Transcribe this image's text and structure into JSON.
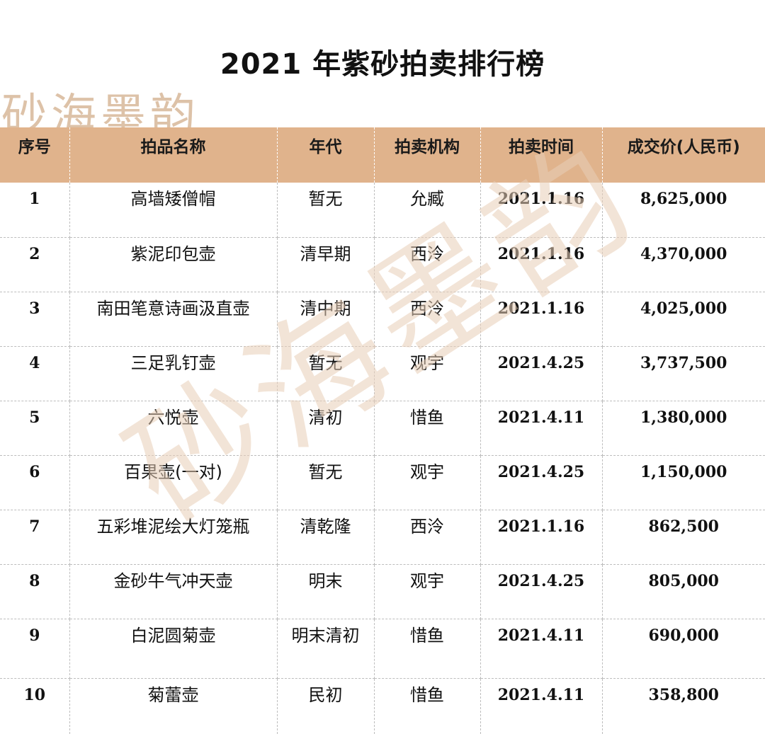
{
  "title": "2021 年紫砂拍卖排行榜",
  "watermark": "砂海墨韵",
  "table": {
    "headers": [
      "序号",
      "拍品名称",
      "年代",
      "拍卖机构",
      "拍卖时间",
      "成交价(人民币)"
    ],
    "rows": [
      {
        "no": "1",
        "name": "高墙矮僧帽",
        "era": "暂无",
        "house": "允臧",
        "date": "2021.1.16",
        "price": "8,625,000"
      },
      {
        "no": "2",
        "name": "紫泥印包壶",
        "era": "清早期",
        "house": "西泠",
        "date": "2021.1.16",
        "price": "4,370,000"
      },
      {
        "no": "3",
        "name": "南田笔意诗画汲直壶",
        "era": "清中期",
        "house": "西泠",
        "date": "2021.1.16",
        "price": "4,025,000"
      },
      {
        "no": "4",
        "name": "三足乳钉壶",
        "era": "暂无",
        "house": "观宇",
        "date": "2021.4.25",
        "price": "3,737,500"
      },
      {
        "no": "5",
        "name": "六悦壶",
        "era": "清初",
        "house": "惜鱼",
        "date": "2021.4.11",
        "price": "1,380,000"
      },
      {
        "no": "6",
        "name": "百果壶(一对)",
        "era": "暂无",
        "house": "观宇",
        "date": "2021.4.25",
        "price": "1,150,000"
      },
      {
        "no": "7",
        "name": "五彩堆泥绘大灯笼瓶",
        "era": "清乾隆",
        "house": "西泠",
        "date": "2021.1.16",
        "price": "862,500"
      },
      {
        "no": "8",
        "name": "金砂牛气冲天壶",
        "era": "明末",
        "house": "观宇",
        "date": "2021.4.25",
        "price": "805,000"
      },
      {
        "no": "9",
        "name": "白泥圆菊壶",
        "era": "明末清初",
        "house": "惜鱼",
        "date": "2021.4.11",
        "price": "690,000"
      },
      {
        "no": "10",
        "name": "菊蕾壶",
        "era": "民初",
        "house": "惜鱼",
        "date": "2021.4.11",
        "price": "358,800"
      }
    ]
  }
}
